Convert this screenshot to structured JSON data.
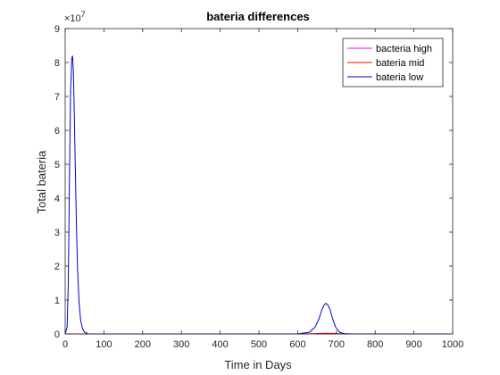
{
  "chart_data": {
    "type": "line",
    "title": "bateria differences",
    "xlabel": "Time in Days",
    "ylabel": "Total bateria",
    "xlim": [
      0,
      1000
    ],
    "ylim": [
      0,
      9
    ],
    "y_exponent_label": "×10",
    "y_exponent_power": "7",
    "xticks": [
      "0",
      "100",
      "200",
      "300",
      "400",
      "500",
      "600",
      "700",
      "800",
      "900",
      "1000"
    ],
    "yticks": [
      "0",
      "1",
      "2",
      "3",
      "4",
      "5",
      "6",
      "7",
      "8",
      "9"
    ],
    "grid": false,
    "legend_position": "top-right",
    "series": [
      {
        "name": "bacteria high",
        "color": "#FF00FF",
        "x": [
          0,
          100,
          200,
          300,
          400,
          500,
          600,
          700,
          800,
          900,
          1000
        ],
        "y": [
          0,
          0,
          0,
          0,
          0,
          0,
          0,
          0,
          0,
          0,
          0
        ]
      },
      {
        "name": "bateria mid",
        "color": "#FF0000",
        "x": [
          0,
          100,
          200,
          300,
          400,
          500,
          600,
          640,
          660,
          675,
          690,
          710,
          750,
          800,
          900,
          1000
        ],
        "y": [
          0,
          0,
          0,
          0,
          0,
          0,
          0,
          0.005,
          0.015,
          0.02,
          0.015,
          0.005,
          0,
          0,
          0,
          0
        ]
      },
      {
        "name": "bateria low",
        "color": "#0000CC",
        "x": [
          0,
          5,
          8,
          11,
          14,
          17,
          19,
          21,
          23,
          26,
          29,
          32,
          36,
          40,
          45,
          50,
          60,
          80,
          100,
          200,
          300,
          400,
          500,
          600,
          630,
          645,
          655,
          662,
          668,
          673,
          678,
          684,
          690,
          698,
          708,
          720,
          740,
          800,
          900,
          1000
        ],
        "y": [
          0,
          0.2,
          1.5,
          4.5,
          7.2,
          8.1,
          8.2,
          7.8,
          6.8,
          5.0,
          3.2,
          1.9,
          0.9,
          0.4,
          0.15,
          0.05,
          0,
          0,
          0,
          0,
          0,
          0,
          0,
          0,
          0.05,
          0.2,
          0.45,
          0.7,
          0.85,
          0.9,
          0.85,
          0.7,
          0.45,
          0.2,
          0.05,
          0.01,
          0,
          0,
          0,
          0
        ]
      }
    ]
  }
}
